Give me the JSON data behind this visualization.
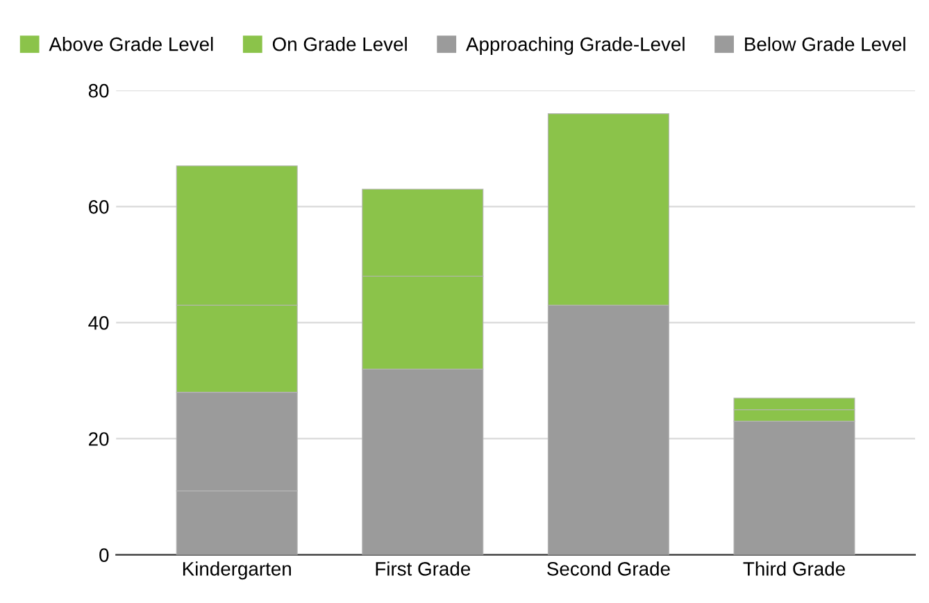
{
  "chart_data": {
    "type": "bar",
    "stacked": true,
    "categories": [
      "Kindergarten",
      "First Grade",
      "Second Grade",
      "Third Grade"
    ],
    "series": [
      {
        "name": "Below Grade Level",
        "color": "#9b9b9b",
        "values": [
          11,
          32,
          43,
          23
        ]
      },
      {
        "name": "Approaching Grade-Level",
        "color": "#9b9b9b",
        "values": [
          17,
          0,
          0,
          0
        ]
      },
      {
        "name": "On Grade Level",
        "color": "#8bc34a",
        "values": [
          15,
          16,
          0,
          2
        ]
      },
      {
        "name": "Above Grade Level",
        "color": "#8bc34a",
        "values": [
          24,
          15,
          33,
          2
        ]
      }
    ],
    "ylim": [
      0,
      80
    ],
    "yticks": [
      0,
      20,
      40,
      60,
      80
    ],
    "grid": "y",
    "legend": "top"
  }
}
